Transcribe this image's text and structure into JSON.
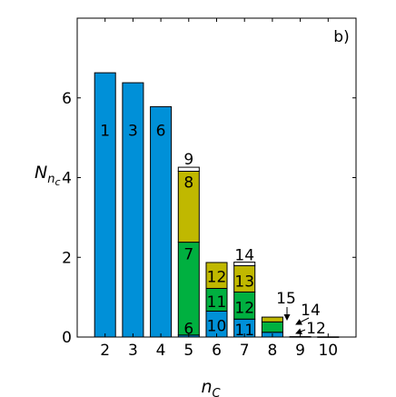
{
  "chart_data": {
    "type": "bar",
    "stacked": true,
    "panel_label": "b)",
    "xlabel": "n",
    "xlabel_sub": "C",
    "ylabel": "N",
    "ylabel_sub": "n",
    "ylabel_subsub": "c",
    "xlim": [
      1,
      11
    ],
    "ylim": [
      0,
      8
    ],
    "yticks": [
      0,
      2,
      4,
      6
    ],
    "categories": [
      "2",
      "3",
      "4",
      "5",
      "6",
      "7",
      "8",
      "9",
      "10"
    ],
    "category_positions": [
      2,
      3,
      4,
      5,
      6,
      7,
      8,
      9,
      10
    ],
    "grid": false,
    "segment_colors": {
      "blue": "#0090d8",
      "green": "#00b040",
      "olive": "#c0b800",
      "white": "#ffffff"
    },
    "bars": [
      {
        "category": "2",
        "segments": [
          {
            "label": "1",
            "from": 0,
            "to": 6.63,
            "color": "blue"
          }
        ]
      },
      {
        "category": "3",
        "segments": [
          {
            "label": "3",
            "from": 0,
            "to": 6.38,
            "color": "blue"
          }
        ]
      },
      {
        "category": "4",
        "segments": [
          {
            "label": "6",
            "from": 0,
            "to": 5.78,
            "color": "blue"
          }
        ]
      },
      {
        "category": "5",
        "segments": [
          {
            "label": "6",
            "from": 0,
            "to": 0.05,
            "color": "blue"
          },
          {
            "label": "7",
            "from": 0.05,
            "to": 2.38,
            "color": "green"
          },
          {
            "label": "8",
            "from": 2.38,
            "to": 4.16,
            "color": "olive"
          },
          {
            "label": "9",
            "from": 4.16,
            "to": 4.26,
            "color": "white"
          }
        ]
      },
      {
        "category": "6",
        "segments": [
          {
            "label": "10",
            "from": 0,
            "to": 0.65,
            "color": "blue"
          },
          {
            "label": "11",
            "from": 0.65,
            "to": 1.22,
            "color": "green"
          },
          {
            "label": "12",
            "from": 1.22,
            "to": 1.87,
            "color": "olive"
          }
        ]
      },
      {
        "category": "7",
        "segments": [
          {
            "label": "11",
            "from": 0,
            "to": 0.45,
            "color": "blue"
          },
          {
            "label": "12",
            "from": 0.45,
            "to": 1.13,
            "color": "green"
          },
          {
            "label": "13",
            "from": 1.13,
            "to": 1.79,
            "color": "olive"
          },
          {
            "label": "14",
            "from": 1.79,
            "to": 1.88,
            "color": "white"
          }
        ]
      },
      {
        "category": "8",
        "segments": [
          {
            "label": "12",
            "from": 0,
            "to": 0.12,
            "color": "blue"
          },
          {
            "label": "14",
            "from": 0.12,
            "to": 0.38,
            "color": "green"
          },
          {
            "label": "15",
            "from": 0.38,
            "to": 0.5,
            "color": "olive"
          }
        ]
      },
      {
        "category": "9",
        "segments": [
          {
            "label": "",
            "from": 0,
            "to": 0.01,
            "color": "blue"
          }
        ]
      },
      {
        "category": "10",
        "segments": [
          {
            "label": "",
            "from": 0,
            "to": 0.005,
            "color": "blue"
          }
        ]
      }
    ],
    "annotations": [
      {
        "text": "15",
        "category": "8"
      },
      {
        "text": "14",
        "category": "8"
      },
      {
        "text": "12",
        "category": "8"
      }
    ]
  }
}
